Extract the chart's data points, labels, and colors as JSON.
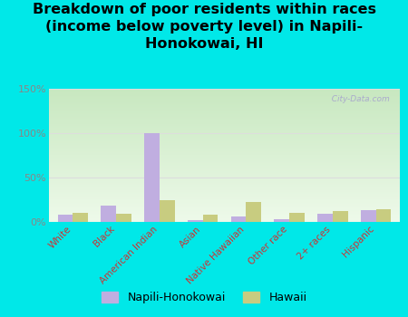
{
  "title": "Breakdown of poor residents within races\n(income below poverty level) in Napili-\nHonokowai, HI",
  "categories": [
    "White",
    "Black",
    "American Indian",
    "Asian",
    "Native Hawaiian",
    "Other race",
    "2+ races",
    "Hispanic"
  ],
  "napili_values": [
    8,
    18,
    100,
    2,
    6,
    3,
    9,
    13
  ],
  "hawaii_values": [
    10,
    9,
    24,
    8,
    22,
    10,
    12,
    14
  ],
  "napili_color": "#c0aee0",
  "hawaii_color": "#c8cc80",
  "bar_width": 0.35,
  "ylim": [
    0,
    150
  ],
  "yticks": [
    0,
    50,
    100,
    150
  ],
  "yticklabels": [
    "0%",
    "50%",
    "100%",
    "150%"
  ],
  "background_color": "#00e8e8",
  "plot_bg_top_color": "#c8e8c0",
  "plot_bg_bottom_color": "#eefaea",
  "title_fontsize": 11.5,
  "tick_label_color": "#cc3333",
  "ytick_color": "#888888",
  "legend_labels": [
    "Napili-Honokowai",
    "Hawaii"
  ],
  "watermark": "  City-Data.com",
  "grid_color": "#dddddd",
  "xlim_left": -0.55,
  "xlim_right": 7.55
}
